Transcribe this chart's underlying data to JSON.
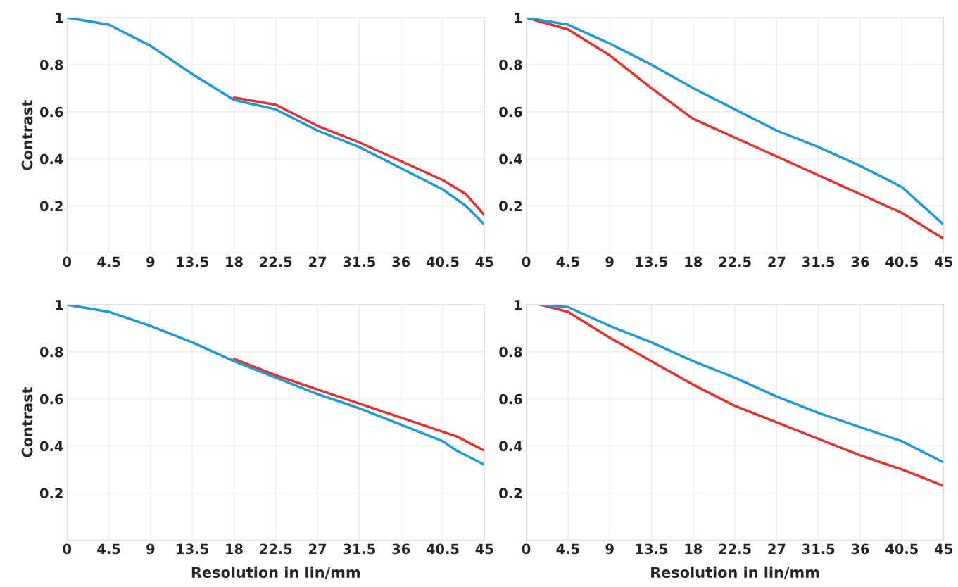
{
  "chart_data": [
    {
      "type": "line",
      "ylabel": "Contrast",
      "x": [
        0,
        4.5,
        9,
        13.5,
        18,
        22.5,
        27,
        31.5,
        36,
        40.5,
        43,
        45
      ],
      "xlim": [
        0,
        45
      ],
      "ylim": [
        0,
        1
      ],
      "xticks": [
        0,
        4.5,
        9,
        13.5,
        18,
        22.5,
        27,
        31.5,
        36,
        40.5,
        45
      ],
      "yticks": [
        0.2,
        0.4,
        0.6,
        0.8,
        1
      ],
      "grid": true,
      "series": [
        {
          "color": "#e8312f",
          "values": [
            null,
            null,
            null,
            null,
            0.66,
            0.63,
            0.54,
            0.47,
            0.39,
            0.31,
            0.25,
            0.16
          ]
        },
        {
          "color": "#1f9ad6",
          "values": [
            1.0,
            0.97,
            0.88,
            0.76,
            0.65,
            0.61,
            0.52,
            0.45,
            0.36,
            0.27,
            0.2,
            0.12
          ]
        }
      ]
    },
    {
      "type": "line",
      "x": [
        0,
        4.5,
        9,
        13.5,
        18,
        22.5,
        27,
        31.5,
        36,
        40.5,
        45
      ],
      "xlim": [
        0,
        45
      ],
      "ylim": [
        0,
        1
      ],
      "xticks": [
        0,
        4.5,
        9,
        13.5,
        18,
        22.5,
        27,
        31.5,
        36,
        40.5,
        45
      ],
      "yticks": [
        0.2,
        0.4,
        0.6,
        0.8,
        1
      ],
      "grid": true,
      "series": [
        {
          "color": "#e8312f",
          "values": [
            1.0,
            0.95,
            0.84,
            0.7,
            0.57,
            0.49,
            0.41,
            0.33,
            0.25,
            0.17,
            0.06
          ]
        },
        {
          "color": "#1f9ad6",
          "values": [
            1.0,
            0.97,
            0.89,
            0.8,
            0.7,
            0.61,
            0.52,
            0.45,
            0.37,
            0.28,
            0.12
          ]
        }
      ]
    },
    {
      "type": "line",
      "ylabel": "Contrast",
      "xlabel": "Resolution in lin/mm",
      "x": [
        0,
        4.5,
        9,
        13.5,
        18,
        22.5,
        27,
        31.5,
        36,
        40.5,
        42,
        45
      ],
      "xlim": [
        0,
        45
      ],
      "ylim": [
        0,
        1
      ],
      "xticks": [
        0,
        4.5,
        9,
        13.5,
        18,
        22.5,
        27,
        31.5,
        36,
        40.5,
        45
      ],
      "yticks": [
        0.2,
        0.4,
        0.6,
        0.8,
        1
      ],
      "grid": true,
      "series": [
        {
          "color": "#e8312f",
          "values": [
            null,
            null,
            null,
            null,
            0.77,
            0.7,
            0.64,
            0.58,
            0.52,
            0.46,
            0.44,
            0.38
          ]
        },
        {
          "color": "#1f9ad6",
          "values": [
            1.0,
            0.97,
            0.91,
            0.84,
            0.76,
            0.69,
            0.62,
            0.56,
            0.49,
            0.42,
            0.38,
            0.32
          ]
        }
      ]
    },
    {
      "type": "line",
      "xlabel": "Resolution in lin/mm",
      "x": [
        1.5,
        4.5,
        9,
        13.5,
        18,
        22.5,
        27,
        31.5,
        36,
        40.5,
        45
      ],
      "xlim": [
        0,
        45
      ],
      "ylim": [
        0,
        1
      ],
      "xticks": [
        0,
        4.5,
        9,
        13.5,
        18,
        22.5,
        27,
        31.5,
        36,
        40.5,
        45
      ],
      "yticks": [
        0.2,
        0.4,
        0.6,
        0.8,
        1
      ],
      "grid": true,
      "series": [
        {
          "color": "#e8312f",
          "values": [
            1.0,
            0.97,
            0.86,
            0.76,
            0.66,
            0.57,
            0.5,
            0.43,
            0.36,
            0.3,
            0.23
          ]
        },
        {
          "color": "#1f9ad6",
          "values": [
            1.0,
            0.99,
            0.91,
            0.84,
            0.76,
            0.69,
            0.61,
            0.54,
            0.48,
            0.42,
            0.33
          ]
        }
      ]
    }
  ]
}
